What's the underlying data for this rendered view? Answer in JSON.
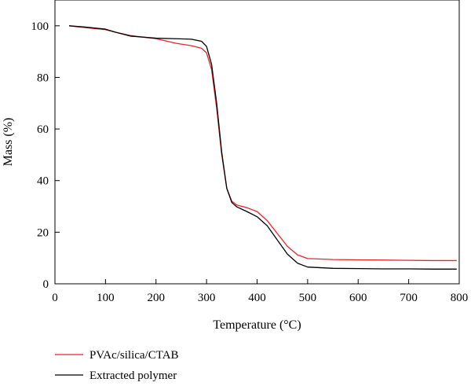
{
  "chart_data": {
    "type": "line",
    "xlabel": "Temperature (°C)",
    "ylabel": "Mass (%)",
    "xlim": [
      0,
      800
    ],
    "ylim": [
      0,
      110
    ],
    "xticks": [
      0,
      100,
      200,
      300,
      400,
      500,
      600,
      700,
      800
    ],
    "yticks": [
      0,
      20,
      40,
      60,
      80,
      100
    ],
    "grid": false,
    "legend_position": "below plot, left",
    "series": [
      {
        "name": "PVAc/silica/CTAB",
        "color": "#e8242b",
        "x": [
          28,
          60,
          100,
          120,
          150,
          200,
          240,
          270,
          290,
          300,
          310,
          320,
          330,
          340,
          350,
          360,
          380,
          400,
          420,
          440,
          460,
          480,
          500,
          550,
          600,
          650,
          700,
          750,
          795
        ],
        "y": [
          100,
          99.3,
          98.5,
          97.5,
          96.2,
          95,
          93.2,
          92.3,
          91.3,
          89.5,
          83,
          68,
          50,
          37,
          32,
          30.5,
          29.5,
          28,
          24.5,
          19.5,
          14.5,
          11.2,
          9.8,
          9.4,
          9.3,
          9.2,
          9.1,
          9,
          9
        ]
      },
      {
        "name": "Extracted polymer",
        "color": "#000000",
        "x": [
          28,
          60,
          100,
          120,
          150,
          200,
          240,
          270,
          290,
          300,
          310,
          320,
          330,
          340,
          350,
          360,
          380,
          400,
          420,
          440,
          460,
          480,
          500,
          550,
          600,
          650,
          700,
          750,
          795
        ],
        "y": [
          100,
          99.5,
          98.7,
          97.5,
          96,
          95.2,
          95,
          94.8,
          94,
          92,
          85,
          70,
          51,
          37,
          31.5,
          29.8,
          28,
          26,
          22.5,
          17,
          11.5,
          8,
          6.5,
          6,
          5.9,
          5.8,
          5.8,
          5.7,
          5.7
        ]
      }
    ]
  }
}
